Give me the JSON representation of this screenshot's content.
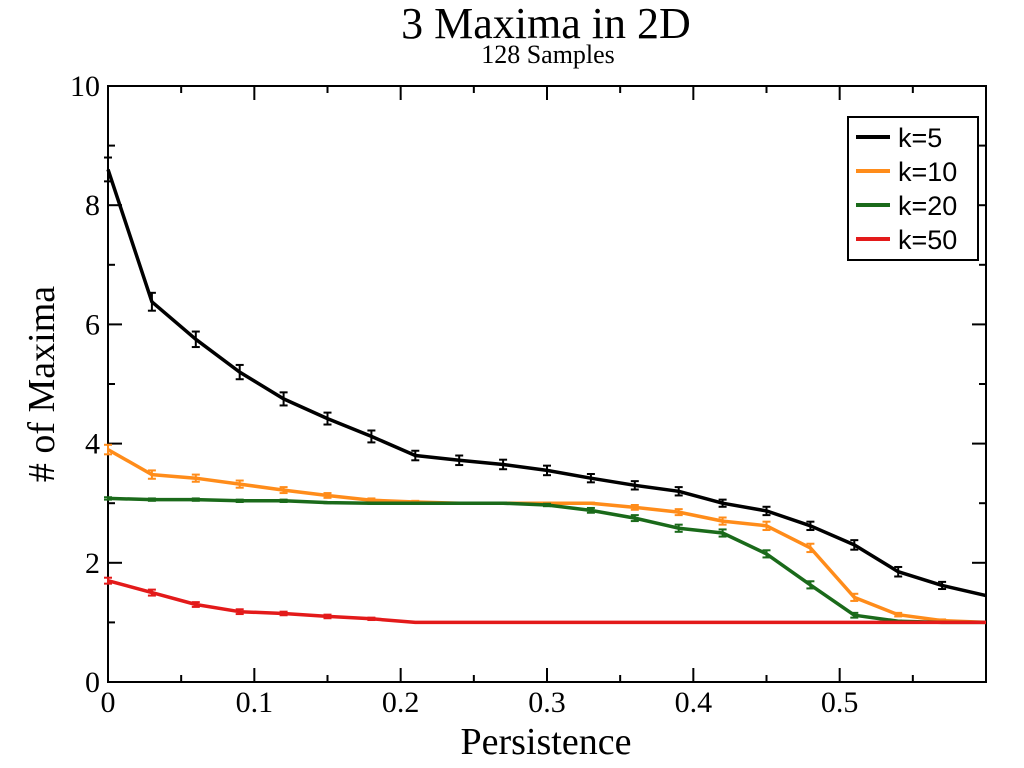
{
  "chart_data": {
    "type": "line",
    "title": "3 Maxima in 2D",
    "subtitle": "128 Samples",
    "xlabel": "Persistence",
    "ylabel": "# of Maxima",
    "xlim": [
      0,
      0.6
    ],
    "ylim": [
      0,
      10
    ],
    "x_ticks": [
      0,
      0.1,
      0.2,
      0.3,
      0.4,
      0.5
    ],
    "x_tick_labels": [
      "0",
      "0.1",
      "0.2",
      "0.3",
      "0.4",
      "0.5"
    ],
    "y_ticks": [
      0,
      2,
      4,
      6,
      8,
      10
    ],
    "y_tick_labels": [
      "0",
      "2",
      "4",
      "6",
      "8",
      "10"
    ],
    "grid": false,
    "legend_position": "top-right",
    "x": [
      0,
      0.03,
      0.06,
      0.09,
      0.12,
      0.15,
      0.18,
      0.21,
      0.24,
      0.27,
      0.3,
      0.33,
      0.36,
      0.39,
      0.42,
      0.45,
      0.48,
      0.51,
      0.54,
      0.57,
      0.6
    ],
    "series": [
      {
        "name": "k=5",
        "color": "#000000",
        "values": [
          8.6,
          6.38,
          5.75,
          5.2,
          4.75,
          4.42,
          4.12,
          3.8,
          3.72,
          3.65,
          3.55,
          3.42,
          3.3,
          3.2,
          3.0,
          2.87,
          2.62,
          2.3,
          1.85,
          1.62,
          1.45
        ],
        "error": [
          0.2,
          0.15,
          0.13,
          0.12,
          0.11,
          0.1,
          0.1,
          0.08,
          0.08,
          0.08,
          0.08,
          0.07,
          0.07,
          0.07,
          0.06,
          0.07,
          0.07,
          0.08,
          0.08,
          0.06,
          0
        ]
      },
      {
        "name": "k=10",
        "color": "#ff8c1a",
        "values": [
          3.9,
          3.48,
          3.42,
          3.32,
          3.22,
          3.13,
          3.05,
          3.02,
          3.0,
          3.0,
          3.0,
          3.0,
          2.93,
          2.85,
          2.7,
          2.62,
          2.25,
          1.42,
          1.13,
          1.03,
          1.0
        ],
        "error": [
          0.08,
          0.07,
          0.06,
          0.06,
          0.05,
          0.04,
          0.03,
          0.02,
          0.01,
          0.01,
          0.01,
          0.01,
          0.04,
          0.05,
          0.06,
          0.07,
          0.07,
          0.06,
          0.03,
          0.02,
          0
        ]
      },
      {
        "name": "k=20",
        "color": "#1a6a1a",
        "values": [
          3.08,
          3.06,
          3.06,
          3.04,
          3.04,
          3.01,
          3.0,
          3.0,
          3.0,
          3.0,
          2.97,
          2.88,
          2.75,
          2.58,
          2.5,
          2.15,
          1.63,
          1.12,
          1.02,
          1.0,
          1.0
        ],
        "error": [
          0.02,
          0.02,
          0.02,
          0.02,
          0.02,
          0.01,
          0.01,
          0.01,
          0.01,
          0.01,
          0.02,
          0.04,
          0.05,
          0.06,
          0.06,
          0.06,
          0.06,
          0.04,
          0.01,
          0.01,
          0
        ]
      },
      {
        "name": "k=50",
        "color": "#e31a1a",
        "values": [
          1.7,
          1.5,
          1.3,
          1.18,
          1.15,
          1.1,
          1.06,
          1.0,
          1.0,
          1.0,
          1.0,
          1.0,
          1.0,
          1.0,
          1.0,
          1.0,
          1.0,
          1.0,
          1.0,
          1.0,
          1.0
        ],
        "error": [
          0.05,
          0.05,
          0.04,
          0.04,
          0.03,
          0.03,
          0.02,
          0,
          0,
          0,
          0,
          0,
          0,
          0,
          0,
          0,
          0,
          0,
          0,
          0,
          0
        ]
      }
    ]
  }
}
